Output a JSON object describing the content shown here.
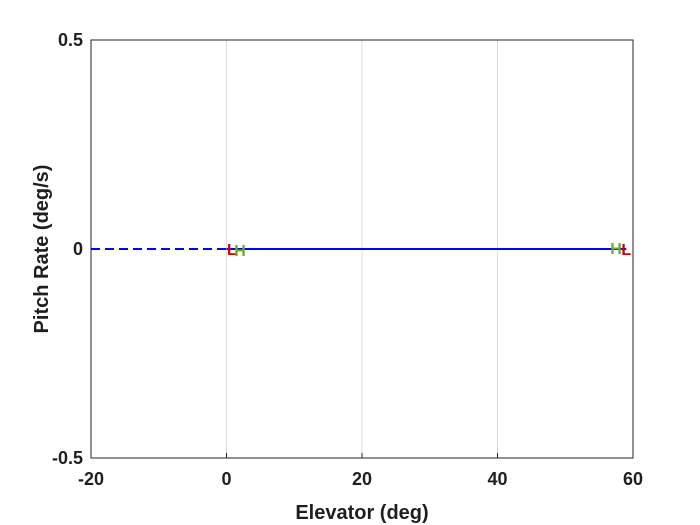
{
  "chart_data": {
    "type": "line",
    "xlabel": "Elevator (deg)",
    "ylabel": "Pitch Rate (deg/s)",
    "xlim": [
      -20,
      60
    ],
    "ylim": [
      -0.5,
      0.5
    ],
    "x_ticks": [
      -20,
      0,
      20,
      40,
      60
    ],
    "y_ticks": [
      -0.5,
      0,
      0.5
    ],
    "x_tick_labels": [
      "-20",
      "0",
      "20",
      "40",
      "60"
    ],
    "y_tick_labels": [
      "-0.5",
      "0",
      "0.5"
    ],
    "grid": "vertical",
    "series": [
      {
        "style": "dashed",
        "color": "#0000ff",
        "x": [
          -20,
          0
        ],
        "y": [
          0,
          0
        ]
      },
      {
        "style": "solid",
        "color": "#0000ff",
        "x": [
          0,
          59
        ],
        "y": [
          0,
          0
        ]
      }
    ],
    "markers": [
      {
        "text": "L",
        "color": "#d40000",
        "x": 0.8,
        "y": 0.0
      },
      {
        "text": "H",
        "color": "#70a830",
        "x": 2.0,
        "y": -0.002
      },
      {
        "text": "H",
        "color": "#70a830",
        "x": 57.5,
        "y": 0.002
      },
      {
        "text": "L",
        "color": "#d40000",
        "x": 59.0,
        "y": 0.0
      }
    ]
  }
}
